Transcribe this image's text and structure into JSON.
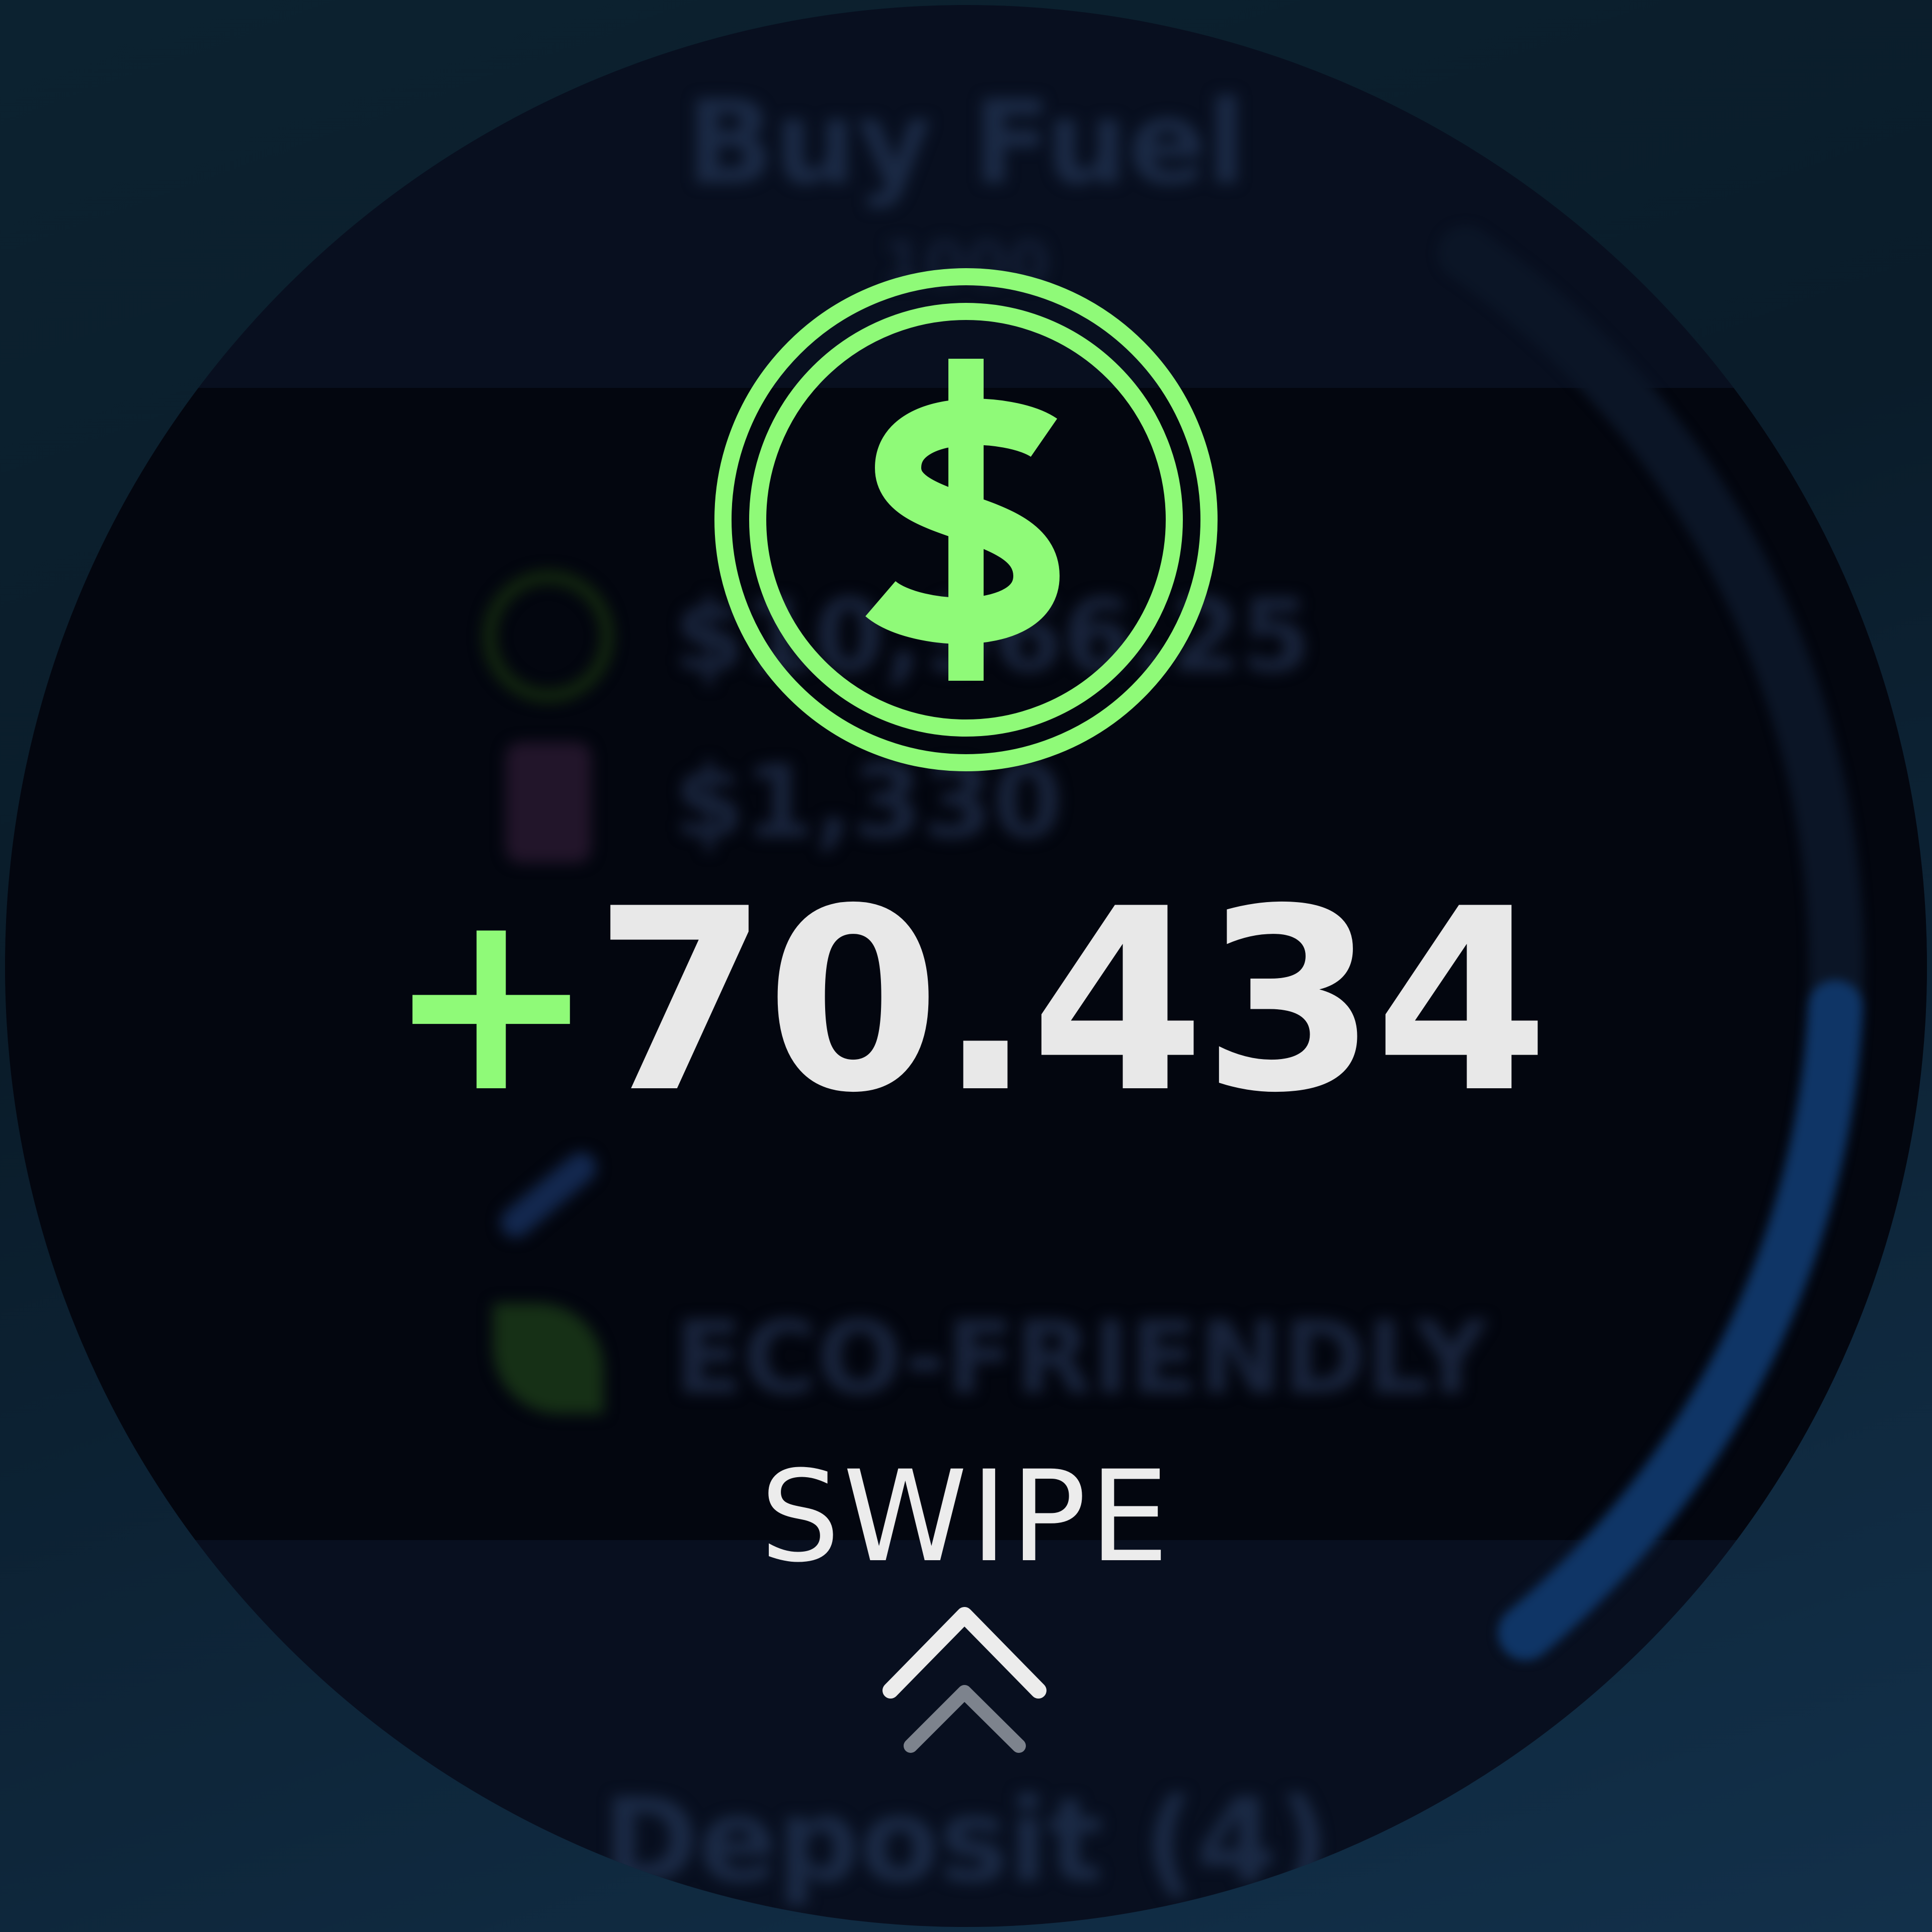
{
  "background": {
    "title": "Buy Fuel",
    "subtitle": "1000",
    "rows": [
      {
        "icon": "dollar-coin-icon",
        "text": "$10,966.25",
        "color": "#1f3d1c"
      },
      {
        "icon": "fuel-pump-icon",
        "text": "$1,330",
        "color": "#2a1a2e"
      },
      {
        "icon": "airplane-icon",
        "text": "",
        "color": "#13284f"
      },
      {
        "icon": "leaf-icon",
        "text": "ECO-FRIENDLY",
        "color": "#1c3a1c"
      }
    ],
    "footer": "Deposit (4)",
    "progress_fraction": 0.45
  },
  "overlay": {
    "icon": "dollar-coin-icon",
    "sign": "+",
    "amount": "70.434",
    "swipe_label": "SWIPE",
    "swipe_icon": "chevron-up-icon"
  },
  "colors": {
    "accent": "#8ffa78",
    "text": "#e8e8e8",
    "progress": "#0f3566"
  }
}
